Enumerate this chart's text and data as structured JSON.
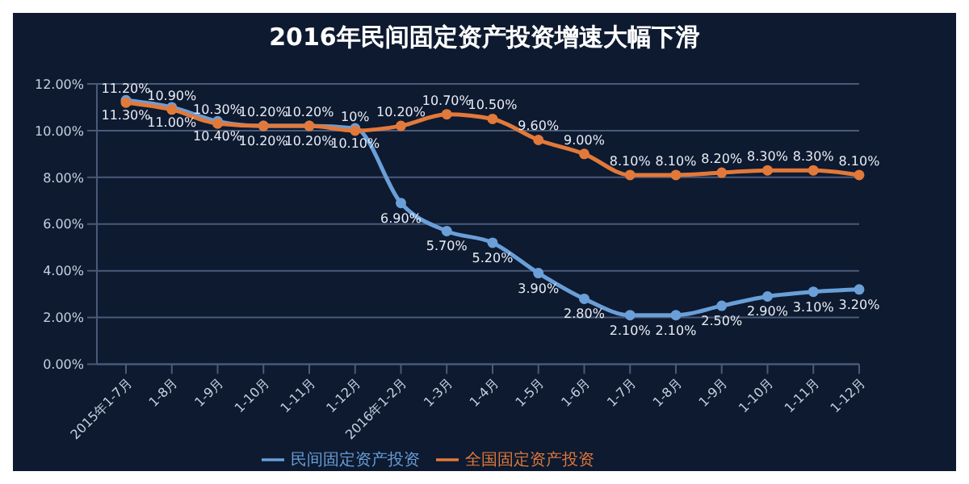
{
  "chart_data": {
    "type": "line",
    "title": "2016年民间固定资产投资增速大幅下滑",
    "categories": [
      "2015年1-7月",
      "1-8月",
      "1-9月",
      "1-10月",
      "1-11月",
      "1-12月",
      "2016年1-2月",
      "1-3月",
      "1-4月",
      "1-5月",
      "1-6月",
      "1-7月",
      "1-8月",
      "1-9月",
      "1-10月",
      "1-11月",
      "1-12月"
    ],
    "series": [
      {
        "name": "民间固定资产投资",
        "color": "#6a9fd8",
        "values": [
          11.3,
          11.0,
          10.4,
          10.2,
          10.2,
          10.1,
          6.9,
          5.7,
          5.2,
          3.9,
          2.8,
          2.1,
          2.1,
          2.5,
          2.9,
          3.1,
          3.2
        ],
        "value_labels": [
          "11.30%",
          "11.00%",
          "10.40%",
          "10.20%",
          "10.20%",
          "10.10%",
          "6.90%",
          "5.70%",
          "5.20%",
          "3.90%",
          "2.80%",
          "2.10%",
          "2.10%",
          "2.50%",
          "2.90%",
          "3.10%",
          "3.20%"
        ]
      },
      {
        "name": "全国固定资产投资",
        "color": "#e2793a",
        "values": [
          11.2,
          10.9,
          10.3,
          10.2,
          10.2,
          10.0,
          10.2,
          10.7,
          10.5,
          9.6,
          9.0,
          8.1,
          8.1,
          8.2,
          8.3,
          8.3,
          8.1
        ],
        "value_labels": [
          "11.20%",
          "10.90%",
          "10.30%",
          "10.20%",
          "10.20%",
          "10%",
          "10.20%",
          "10.70%",
          "10.50%",
          "9.60%",
          "9.00%",
          "8.10%",
          "8.10%",
          "8.20%",
          "8.30%",
          "8.30%",
          "8.10%"
        ]
      }
    ],
    "ylim": [
      0,
      12
    ],
    "yticks": [
      {
        "value": 0,
        "label": "0.00%"
      },
      {
        "value": 2,
        "label": "2.00%"
      },
      {
        "value": 4,
        "label": "4.00%"
      },
      {
        "value": 6,
        "label": "6.00%"
      },
      {
        "value": 8,
        "label": "8.00%"
      },
      {
        "value": 10,
        "label": "10.00%"
      },
      {
        "value": 12,
        "label": "12.00%"
      }
    ],
    "grid": "y",
    "legend": "bottom",
    "marker": "circle",
    "line_style": "solid"
  }
}
